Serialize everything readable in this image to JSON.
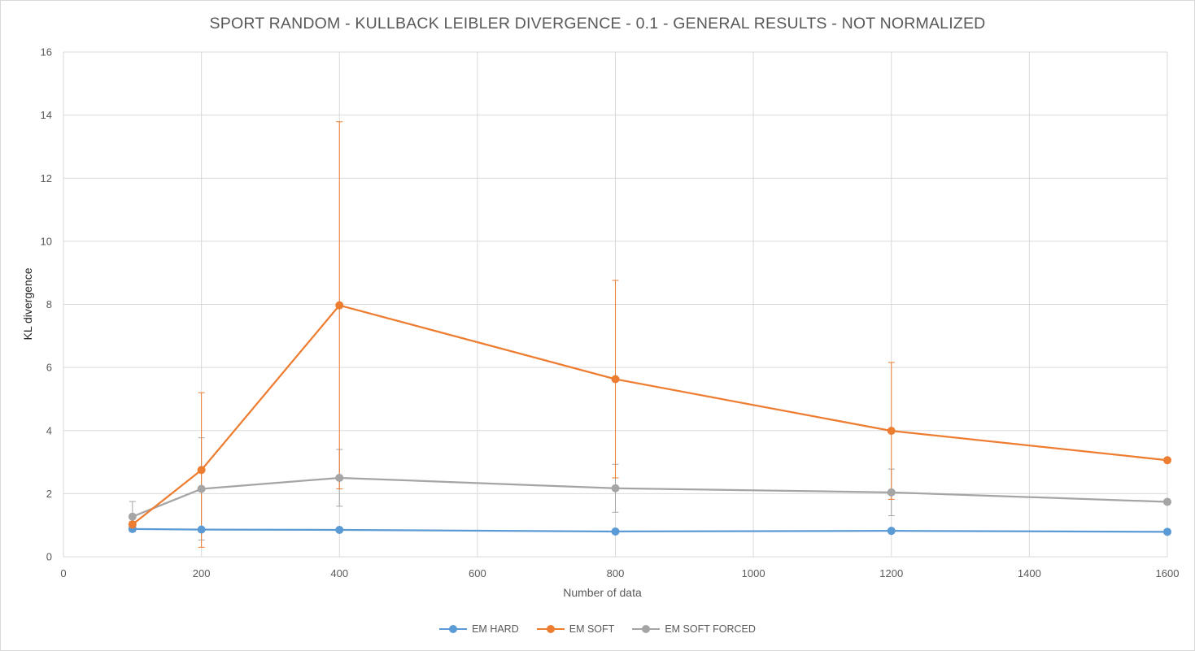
{
  "chart_data": {
    "type": "line",
    "title": "SPORT RANDOM - KULLBACK LEIBLER DIVERGENCE - 0.1 - GENERAL RESULTS - NOT NORMALIZED",
    "xlabel": "Number of data",
    "ylabel": "KL divergence",
    "xlim": [
      0,
      1600
    ],
    "ylim": [
      0,
      16
    ],
    "xticks": [
      0,
      200,
      400,
      600,
      800,
      1000,
      1200,
      1400,
      1600
    ],
    "yticks": [
      0,
      2,
      4,
      6,
      8,
      10,
      12,
      14,
      16
    ],
    "grid": true,
    "legend_position": "bottom",
    "series": [
      {
        "name": "EM HARD",
        "color": "#5b9bd5",
        "x": [
          100,
          200,
          400,
          800,
          1200,
          1600
        ],
        "y": [
          0.88,
          0.86,
          0.85,
          0.8,
          0.82,
          0.79
        ],
        "error": [
          0.03,
          0.03,
          0.03,
          0.03,
          0.03,
          0.03
        ]
      },
      {
        "name": "EM SOFT",
        "color": "#ed7d31",
        "x": [
          100,
          200,
          400,
          800,
          1200,
          1600
        ],
        "y": [
          1.02,
          2.75,
          7.97,
          5.63,
          3.99,
          3.06
        ],
        "error": [
          0.1,
          2.45,
          5.82,
          3.13,
          2.17,
          0
        ]
      },
      {
        "name": "EM SOFT FORCED",
        "color": "#a5a5a5",
        "x": [
          100,
          200,
          400,
          800,
          1200,
          1600
        ],
        "y": [
          1.27,
          2.15,
          2.5,
          2.17,
          2.04,
          1.74
        ],
        "error": [
          0.48,
          1.62,
          0.9,
          0.76,
          0.74,
          0
        ]
      }
    ]
  }
}
